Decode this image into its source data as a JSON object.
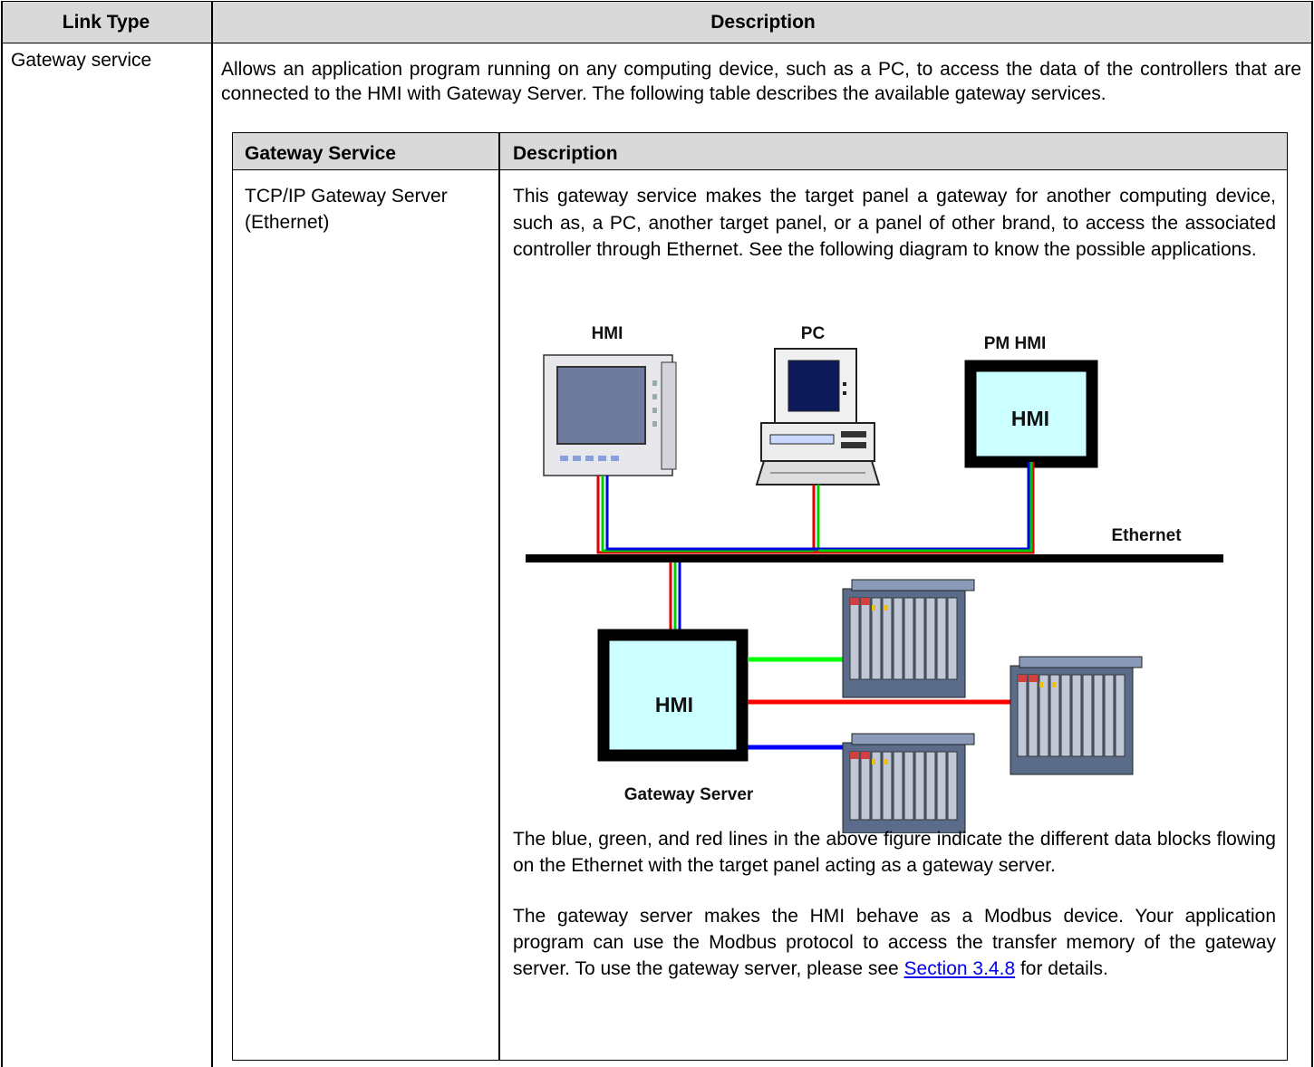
{
  "table": {
    "headers": [
      "Link Type",
      "Description"
    ],
    "row": {
      "link_type": "Gateway service",
      "intro": "Allows an application program running on any computing device, such as a PC, to access the data of the controllers that are connected to the HMI with Gateway Server. The following table describes the available gateway services.",
      "services": {
        "headers": [
          "Gateway Service",
          "Description"
        ],
        "rows": [
          {
            "name": "TCP/IP Gateway Server (Ethernet)",
            "description": "This gateway service makes the target panel a gateway for another computing device, such as, a PC, another target panel, or a panel of other brand, to access the associated controller through Ethernet. See the following diagram to know the possible applications.",
            "diagram": {
              "hmi": "HMI",
              "pc": "PC",
              "pm_hmi": "PM HMI",
              "pm_hmi_screen": "HMI",
              "ethernet": "Ethernet",
              "gateway_screen": "HMI",
              "gateway_server": "Gateway Server"
            },
            "note1": "The blue, green, and red lines in the above figure indicate the different data blocks flowing on the Ethernet with the target panel acting as a gateway server.",
            "note2_before": "The gateway server makes the HMI behave as a Modbus device. Your application program can use the Modbus protocol to access the transfer memory of the gateway server. To use the gateway server, please see ",
            "note2_link": "Section 3.4.8",
            "note2_after": " for details."
          }
        ]
      }
    }
  }
}
